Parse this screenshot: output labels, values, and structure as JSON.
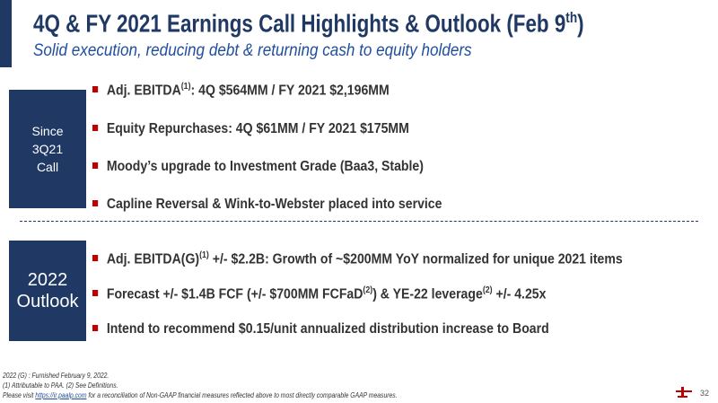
{
  "header": {
    "title": [
      {
        "text": "4Q & FY 2021 Earnings Call Highlights & Outlook (Feb 9"
      },
      {
        "sup": "th"
      },
      {
        "text": ")"
      }
    ],
    "subtitle": "Solid execution, reducing debt & returning cash to equity holders"
  },
  "sections": [
    {
      "label": [
        "Since",
        "3Q21",
        "Call"
      ],
      "bullets": [
        [
          {
            "text": "Adj. EBITDA"
          },
          {
            "sup": "(1)"
          },
          {
            "text": ": 4Q $564MM / FY 2021 $2,196MM"
          }
        ],
        [
          {
            "text": "Equity Repurchases: 4Q $61MM / FY 2021 $175MM"
          }
        ],
        [
          {
            "text": "Moody’s upgrade to Investment Grade (Baa3, Stable)"
          }
        ],
        [
          {
            "text": "Capline Reversal & Wink-to-Webster placed into service"
          }
        ]
      ]
    },
    {
      "label": [
        "2022",
        "Outlook"
      ],
      "bullets": [
        [
          {
            "text": "Adj. EBITDA(G)"
          },
          {
            "sup": "(1)"
          },
          {
            "text": " +/- $2.2B: Growth of ~$200MM YoY normalized for unique 2021 items"
          }
        ],
        [
          {
            "text": "Forecast +/- $1.4B FCF (+/- $700MM FCFaD"
          },
          {
            "sup": "(2)"
          },
          {
            "text": ") & YE-22 leverage"
          },
          {
            "sup": "(2)"
          },
          {
            "text": " +/- 4.25x"
          }
        ],
        [
          {
            "text": "Intend to recommend $0.15/unit annualized distribution increase to Board"
          }
        ]
      ]
    }
  ],
  "footnotes": [
    [
      {
        "text": "2022 (G) : Furnished February 9, 2022."
      }
    ],
    [
      {
        "text": "(1) Attributable to PAA. (2) See Definitions."
      }
    ],
    [
      {
        "text": "Please visit "
      },
      {
        "link": "https://ir.paalp.com"
      },
      {
        "text": " for a reconciliation of Non-GAAP financial measures reflected above to most directly comparable GAAP measures."
      }
    ]
  ],
  "page_number": "32"
}
